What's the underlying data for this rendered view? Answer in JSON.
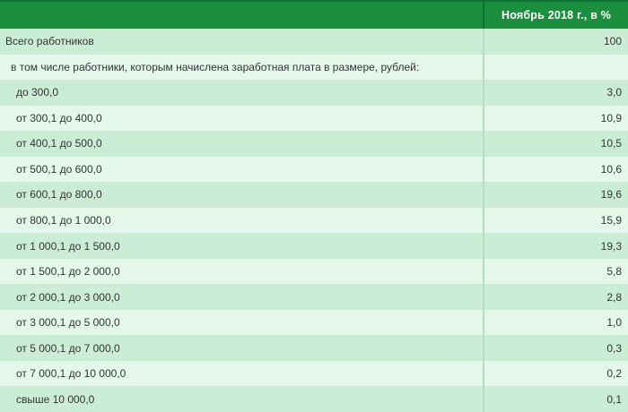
{
  "table": {
    "header": {
      "label_col": "",
      "value_col": "Ноябрь 2018 г., в %"
    },
    "rows": [
      {
        "label": "Всего работников",
        "value": "100",
        "indent": 1
      },
      {
        "label": "в том числе работники, которым начислена заработная плата в размере, рублей:",
        "value": "",
        "indent": 2
      },
      {
        "label": "до 300,0",
        "value": "3,0",
        "indent": 3
      },
      {
        "label": "от 300,1 до 400,0",
        "value": "10,9",
        "indent": 3
      },
      {
        "label": "от 400,1 до 500,0",
        "value": "10,5",
        "indent": 3
      },
      {
        "label": "от 500,1 до 600,0",
        "value": "10,6",
        "indent": 3
      },
      {
        "label": "от 600,1 до 800,0",
        "value": "19,6",
        "indent": 3
      },
      {
        "label": "от 800,1 до 1 000,0",
        "value": "15,9",
        "indent": 3
      },
      {
        "label": "от 1 000,1 до 1 500,0",
        "value": "19,3",
        "indent": 3
      },
      {
        "label": "от 1 500,1 до 2 000,0",
        "value": "5,8",
        "indent": 3
      },
      {
        "label": "от 2 000,1 до 3 000,0",
        "value": "2,8",
        "indent": 3
      },
      {
        "label": "от 3 000,1 до 5 000,0",
        "value": "1,0",
        "indent": 3
      },
      {
        "label": "от 5 000,1 до 7 000,0",
        "value": "0,3",
        "indent": 3
      },
      {
        "label": "от 7 000,1 до 10 000,0",
        "value": "0,2",
        "indent": 3
      },
      {
        "label": "свыше 10 000,0",
        "value": "0,1",
        "indent": 3
      }
    ]
  },
  "colors": {
    "header_green": "#1c8f3f",
    "header_border_green": "#0d7032",
    "row_dark_green": "#cbedd6",
    "row_light_green": "#e3f8ea",
    "column_separator": "#b5ddc0",
    "text": "#333333",
    "header_text": "#ffffff"
  },
  "chart_data": {
    "type": "table",
    "title": "Ноябрь 2018 г., в %",
    "columns": [
      "",
      "Ноябрь 2018 г., в %"
    ],
    "rows": [
      [
        "Всего работников",
        100
      ],
      [
        "в том числе работники, которым начислена заработная плата в размере, рублей:",
        null
      ],
      [
        "до 300,0",
        3.0
      ],
      [
        "от 300,1 до 400,0",
        10.9
      ],
      [
        "от 400,1 до 500,0",
        10.5
      ],
      [
        "от 500,1 до 600,0",
        10.6
      ],
      [
        "от 600,1 до 800,0",
        19.6
      ],
      [
        "от 800,1 до 1 000,0",
        15.9
      ],
      [
        "от 1 000,1 до 1 500,0",
        19.3
      ],
      [
        "от 1 500,1 до 2 000,0",
        5.8
      ],
      [
        "от 2 000,1 до 3 000,0",
        2.8
      ],
      [
        "от 3 000,1 до 5 000,0",
        1.0
      ],
      [
        "от 5 000,1 до 7 000,0",
        0.3
      ],
      [
        "от 7 000,1 до 10 000,0",
        0.2
      ],
      [
        "свыше 10 000,0",
        0.1
      ]
    ]
  }
}
